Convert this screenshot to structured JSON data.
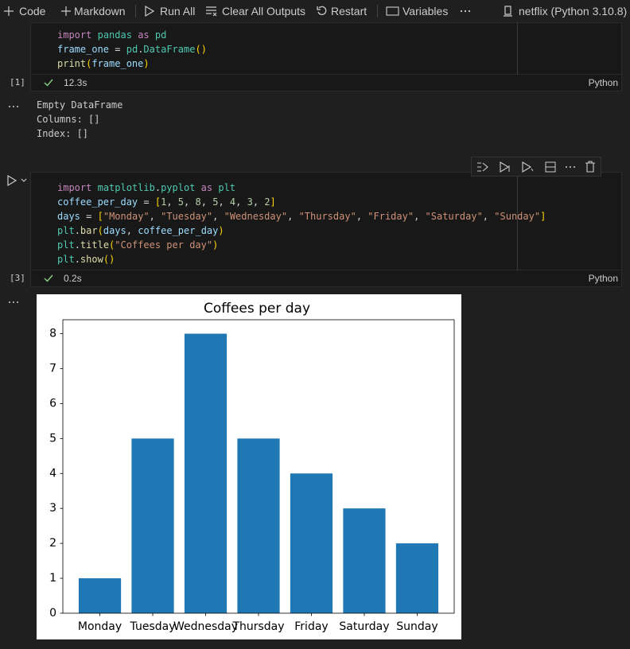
{
  "toolbar": {
    "items": [
      "Code",
      "Markdown",
      "Run All",
      "Clear All Outputs",
      "Restart",
      "Variables"
    ],
    "kernel": "netflix (Python 3.10.8)"
  },
  "cells": [
    {
      "code": [
        "import pandas as pd",
        "frame_one = pd.DataFrame()",
        "print(frame_one)"
      ],
      "execution_count": "[1]",
      "duration": "12.3s",
      "language": "Python",
      "output": [
        "Empty DataFrame",
        "Columns: []",
        "Index: []"
      ]
    },
    {
      "code": [
        "import matplotlib.pyplot as plt",
        "coffee_per_day = [1, 5, 8, 5, 4, 3, 2]",
        "days = [\"Monday\", \"Tuesday\", \"Wednesday\", \"Thursday\", \"Friday\", \"Saturday\", \"Sunday\"]",
        "plt.bar(days, coffee_per_day)",
        "plt.title(\"Coffees per day\")",
        "plt.show()"
      ],
      "execution_count": "[3]",
      "duration": "0.2s",
      "language": "Python"
    }
  ],
  "chart_data": {
    "type": "bar",
    "title": "Coffees per day",
    "categories": [
      "Monday",
      "Tuesday",
      "Wednesday",
      "Thursday",
      "Friday",
      "Saturday",
      "Sunday"
    ],
    "values": [
      1,
      5,
      8,
      5,
      4,
      3,
      2
    ],
    "color": "#1f77b4",
    "ylim": [
      0,
      8.4
    ],
    "yticks": [
      0,
      1,
      2,
      3,
      4,
      5,
      6,
      7,
      8
    ],
    "grid": false
  }
}
